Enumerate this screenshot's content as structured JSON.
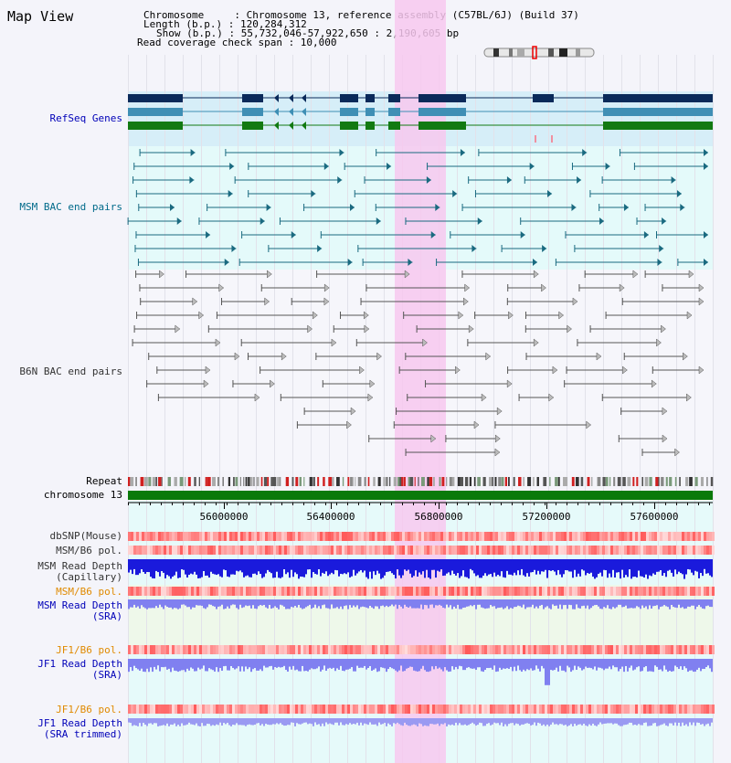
{
  "view": {
    "title": "Map View",
    "info_lines": [
      "Chromosome     : Chromosome 13, reference assembly (C57BL/6J) (Build 37)",
      "Length (b.p.) : 120,284,312",
      "Show (b.p.) : 55,732,046-57,922,650 : 2,190,605 bp",
      "Read coverage check span : 10,000"
    ]
  },
  "tracks": {
    "refseq": "RefSeq Genes",
    "msm_bac": "MSM BAC end pairs",
    "b6n_bac": "B6N BAC end pairs",
    "repeat": "Repeat",
    "chromosome": "chromosome 13",
    "dbsnp": "dbSNP(Mouse)",
    "msm_b6_pol_1": "MSM/B6 pol.",
    "msm_depth_cap_1": "MSM Read Depth",
    "msm_depth_cap_2": "(Capillary)",
    "msm_b6_pol_2": "MSM/B6 pol.",
    "msm_depth_sra_1": "MSM Read Depth",
    "msm_depth_sra_2": "(SRA)",
    "jf1_b6_pol_1": "JF1/B6 pol.",
    "jf1_depth_sra_1": "JF1 Read Depth",
    "jf1_depth_sra_2": "(SRA)",
    "jf1_b6_pol_2": "JF1/B6 pol.",
    "jf1_depth_trim_1": "JF1 Read Depth",
    "jf1_depth_trim_2": "(SRA trimmed)"
  },
  "axis": {
    "ticks": [
      "56000000",
      "56400000",
      "56800000",
      "57200000",
      "57600000"
    ]
  },
  "colors": {
    "highlight": "#f7c8ee",
    "refseq_bg": "#d6eef8",
    "msm_bg": "#e4fafa",
    "chromosome_bar": "#0a7a0a",
    "gene_dark": "#0a2a5a",
    "gene_mid": "#3f8fb5",
    "gene_green": "#127a12",
    "msm_line": "#1a6a80",
    "b6n_line": "#555555",
    "depth_dark": "#1a1adc",
    "depth_light": "#8080f0",
    "label_blue": "#0000b8",
    "label_teal": "#006a8a",
    "label_gray": "#333333",
    "label_orange": "#e08a00"
  }
}
